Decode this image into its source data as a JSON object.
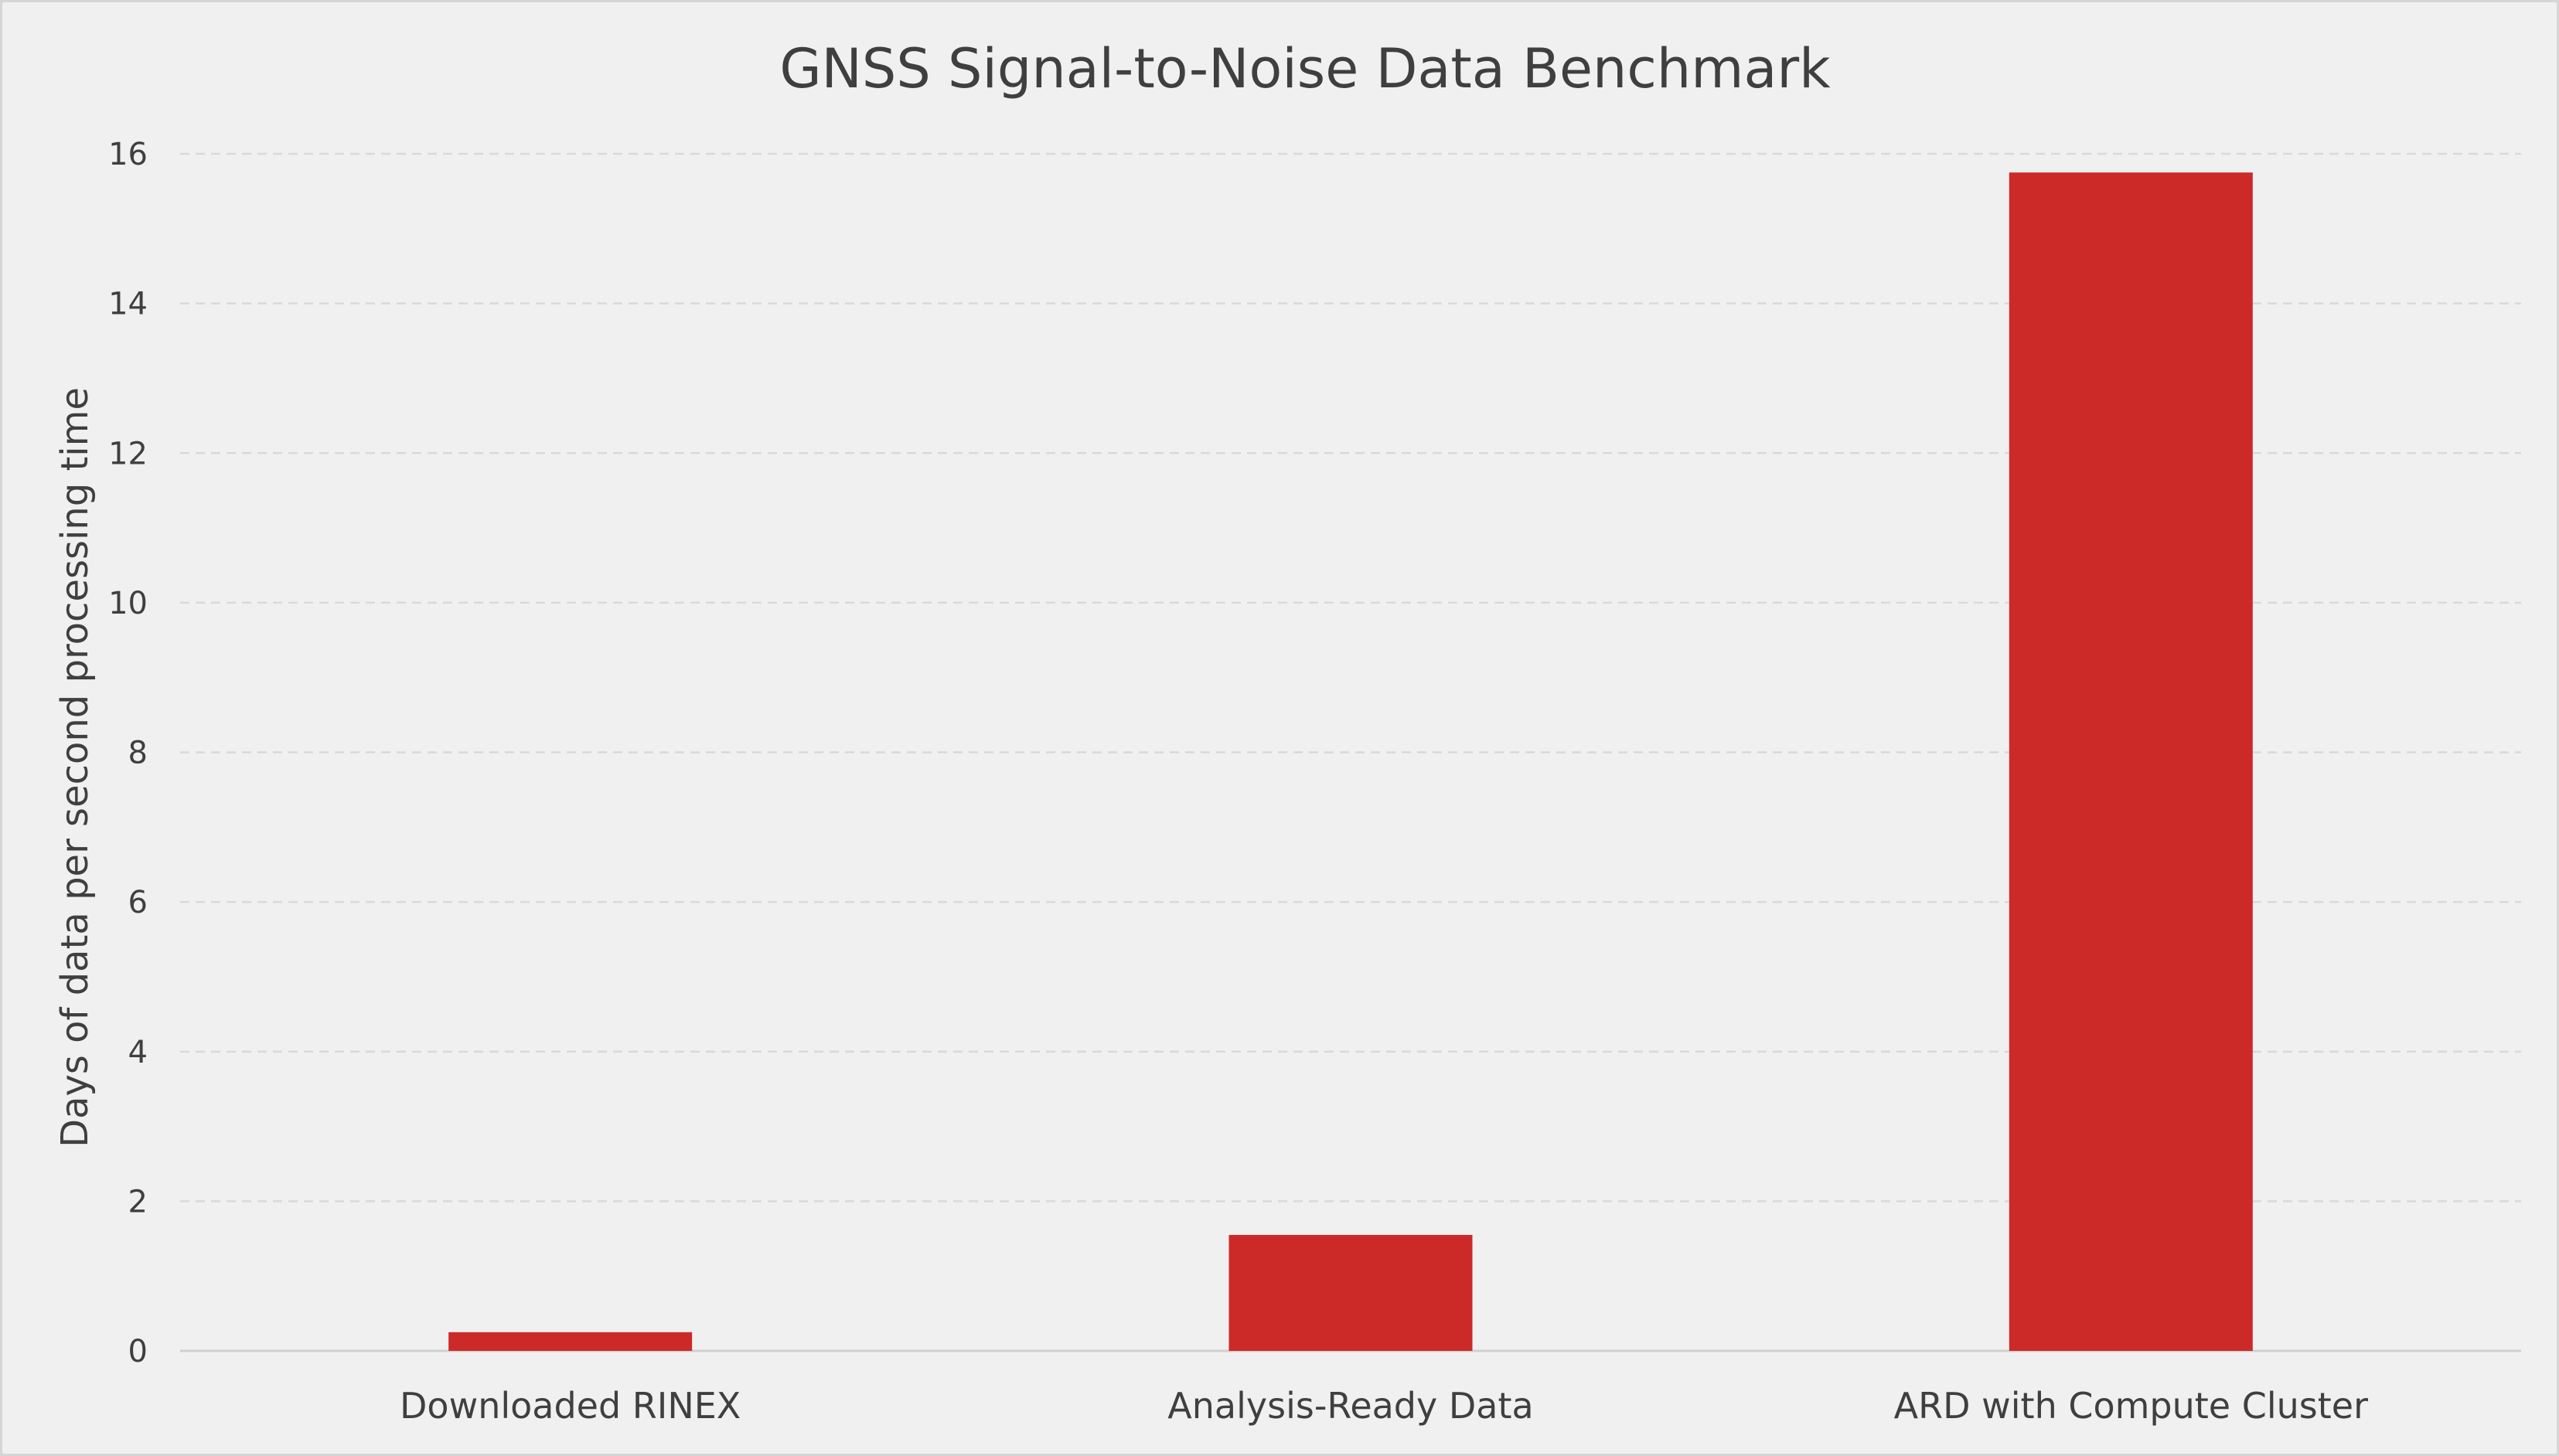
{
  "chart_data": {
    "type": "bar",
    "title": "GNSS Signal-to-Noise Data Benchmark",
    "xlabel": "",
    "ylabel": "Days of data per second processing time",
    "categories": [
      "Downloaded RINEX",
      "Analysis-Ready Data",
      "ARD with Compute Cluster"
    ],
    "values": [
      0.25,
      1.55,
      15.75
    ],
    "ylim": [
      0,
      16
    ],
    "yticks": [
      0,
      2,
      4,
      6,
      8,
      10,
      12,
      14,
      16
    ],
    "grid": true,
    "bar_color": "#cc2a29"
  }
}
